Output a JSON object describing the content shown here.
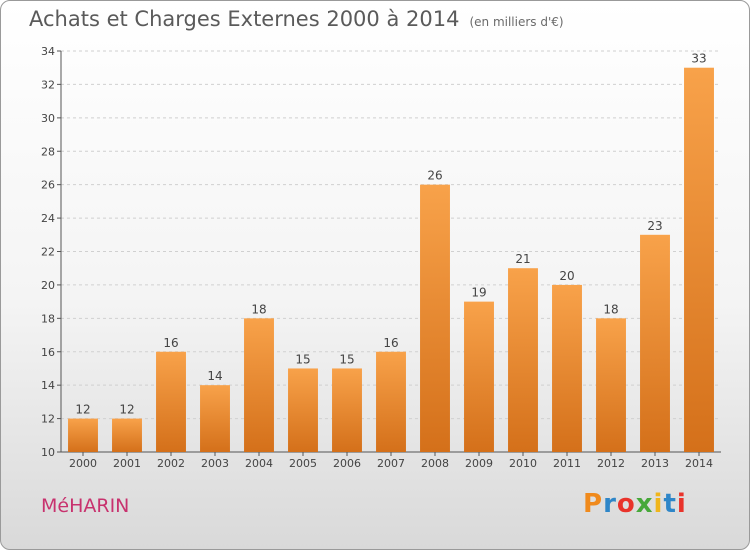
{
  "header": {
    "title": "Achats et Charges Externes 2000 à 2014",
    "unit": "(en milliers d'€)"
  },
  "footer": {
    "location": "MéHARIN",
    "brand": "Proxiti"
  },
  "brand_colors": [
    "#f08a1c",
    "#2e86c8",
    "#e9332b",
    "#47a83a",
    "#f0b51c",
    "#2e86c8",
    "#e9332b"
  ],
  "colors": {
    "bar_top": "#f8a24a",
    "bar_bottom": "#d4701a",
    "title": "#5a5a5a",
    "location": "#c8326e",
    "grid": "#d0d0d0"
  },
  "chart_data": {
    "type": "bar",
    "title": "Achats et Charges Externes 2000 à 2014",
    "subtitle": "(en milliers d'€)",
    "categories": [
      "2000",
      "2001",
      "2002",
      "2003",
      "2004",
      "2005",
      "2006",
      "2007",
      "2008",
      "2009",
      "2010",
      "2011",
      "2012",
      "2013",
      "2014"
    ],
    "values": [
      12,
      12,
      16,
      14,
      18,
      15,
      15,
      16,
      26,
      19,
      21,
      20,
      18,
      23,
      33
    ],
    "ylim": [
      10,
      34
    ],
    "yticks": [
      10,
      12,
      14,
      16,
      18,
      20,
      22,
      24,
      26,
      28,
      30,
      32,
      34
    ],
    "grid": true,
    "data_labels": true
  }
}
